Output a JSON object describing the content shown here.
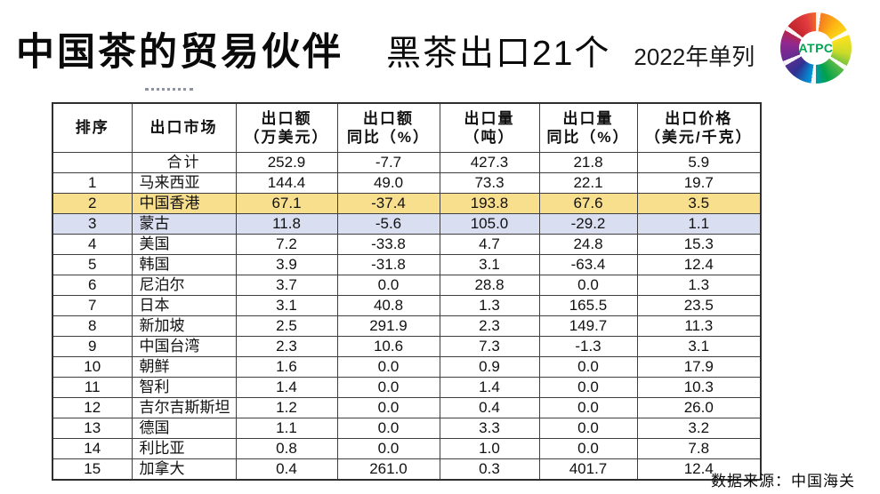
{
  "slide": {
    "title": "中国茶的贸易伙伴",
    "subtitle": "黑茶出口21个",
    "note": "2022年单列",
    "source": "数据来源：中国海关"
  },
  "logo": {
    "label": "ATPC"
  },
  "colors": {
    "highlight_yellow": "#F8DF8E",
    "highlight_lavender": "#D9DEF1",
    "logo_green": "#00A551"
  },
  "table": {
    "headers": [
      {
        "l1": "排序",
        "l2": ""
      },
      {
        "l1": "出口市场",
        "l2": ""
      },
      {
        "l1": "出口额",
        "l2": "（万美元）"
      },
      {
        "l1": "出口额",
        "l2": "同比（%）"
      },
      {
        "l1": "出口量",
        "l2": "（吨）"
      },
      {
        "l1": "出口量",
        "l2": "同比（%）"
      },
      {
        "l1": "出口价格",
        "l2": "（美元/千克）"
      }
    ],
    "rows": [
      {
        "rank": "",
        "market": "合计",
        "values": [
          "252.9",
          "-7.7",
          "427.3",
          "21.8",
          "5.9"
        ],
        "highlight": "",
        "total": true
      },
      {
        "rank": "1",
        "market": "马来西亚",
        "values": [
          "144.4",
          "49.0",
          "73.3",
          "22.1",
          "19.7"
        ],
        "highlight": "",
        "total": false
      },
      {
        "rank": "2",
        "market": "中国香港",
        "values": [
          "67.1",
          "-37.4",
          "193.8",
          "67.6",
          "3.5"
        ],
        "highlight": "yellow",
        "total": false
      },
      {
        "rank": "3",
        "market": "蒙古",
        "values": [
          "11.8",
          "-5.6",
          "105.0",
          "-29.2",
          "1.1"
        ],
        "highlight": "lavender",
        "total": false
      },
      {
        "rank": "4",
        "market": "美国",
        "values": [
          "7.2",
          "-33.8",
          "4.7",
          "24.8",
          "15.3"
        ],
        "highlight": "",
        "total": false
      },
      {
        "rank": "5",
        "market": "韩国",
        "values": [
          "3.9",
          "-31.8",
          "3.1",
          "-63.4",
          "12.4"
        ],
        "highlight": "",
        "total": false
      },
      {
        "rank": "6",
        "market": "尼泊尔",
        "values": [
          "3.7",
          "0.0",
          "28.8",
          "0.0",
          "1.3"
        ],
        "highlight": "",
        "total": false
      },
      {
        "rank": "7",
        "market": "日本",
        "values": [
          "3.1",
          "40.8",
          "1.3",
          "165.5",
          "23.5"
        ],
        "highlight": "",
        "total": false
      },
      {
        "rank": "8",
        "market": "新加坡",
        "values": [
          "2.5",
          "291.9",
          "2.3",
          "149.7",
          "11.3"
        ],
        "highlight": "",
        "total": false
      },
      {
        "rank": "9",
        "market": "中国台湾",
        "values": [
          "2.3",
          "10.6",
          "7.3",
          "-1.3",
          "3.1"
        ],
        "highlight": "",
        "total": false
      },
      {
        "rank": "10",
        "market": "朝鲜",
        "values": [
          "1.6",
          "0.0",
          "0.9",
          "0.0",
          "17.9"
        ],
        "highlight": "",
        "total": false
      },
      {
        "rank": "11",
        "market": "智利",
        "values": [
          "1.4",
          "0.0",
          "1.4",
          "0.0",
          "10.3"
        ],
        "highlight": "",
        "total": false
      },
      {
        "rank": "12",
        "market": "吉尔吉斯斯坦",
        "values": [
          "1.2",
          "0.0",
          "0.4",
          "0.0",
          "26.0"
        ],
        "highlight": "",
        "total": false
      },
      {
        "rank": "13",
        "market": "德国",
        "values": [
          "1.1",
          "0.0",
          "3.3",
          "0.0",
          "3.2"
        ],
        "highlight": "",
        "total": false
      },
      {
        "rank": "14",
        "market": "利比亚",
        "values": [
          "0.8",
          "0.0",
          "1.0",
          "0.0",
          "7.8"
        ],
        "highlight": "",
        "total": false
      },
      {
        "rank": "15",
        "market": "加拿大",
        "values": [
          "0.4",
          "261.0",
          "0.3",
          "401.7",
          "12.4"
        ],
        "highlight": "",
        "total": false
      }
    ]
  }
}
